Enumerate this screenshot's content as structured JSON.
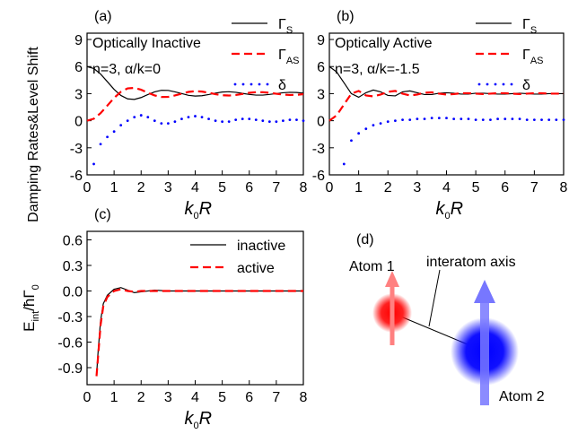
{
  "chart_data": [
    {
      "type": "line",
      "panel": "(a)",
      "annotations": [
        "Optically Inactive",
        "n=3, α/k=0"
      ],
      "ylabel": "Damping Rates&Level Shift",
      "xlabel": [
        "k",
        "0",
        "R"
      ],
      "xlim": [
        0,
        8
      ],
      "xticks": [
        0,
        1,
        2,
        3,
        4,
        5,
        6,
        7,
        8
      ],
      "ylim": [
        -6,
        9.7
      ],
      "yticks": [
        -6,
        -3,
        0,
        3,
        6,
        9
      ],
      "legend": "upper right",
      "x": [
        0,
        0.25,
        0.5,
        0.75,
        1,
        1.25,
        1.5,
        1.75,
        2,
        2.25,
        2.5,
        2.75,
        3,
        3.25,
        3.5,
        3.75,
        4,
        4.25,
        4.5,
        4.75,
        5,
        5.25,
        5.5,
        5.75,
        6,
        6.25,
        6.5,
        6.75,
        7,
        7.25,
        7.5,
        7.75,
        8
      ],
      "series": [
        {
          "name": "Γ",
          "sub": "S",
          "color": "#000000",
          "style": "solid",
          "values": [
            6,
            5.78,
            5.17,
            4.33,
            3.47,
            2.8,
            2.42,
            2.36,
            2.57,
            2.9,
            3.2,
            3.37,
            3.36,
            3.2,
            3.01,
            2.81,
            2.73,
            2.77,
            2.9,
            3.06,
            3.18,
            3.21,
            3.15,
            3.03,
            2.91,
            2.84,
            2.84,
            2.91,
            3.01,
            3.1,
            3.15,
            3.13,
            3.06
          ]
        },
        {
          "name": "Γ",
          "sub": "AS",
          "color": "#ff0000",
          "style": "dashed",
          "values": [
            0,
            0.22,
            0.83,
            1.67,
            2.53,
            3.2,
            3.58,
            3.64,
            3.43,
            3.1,
            2.8,
            2.63,
            2.64,
            2.8,
            2.99,
            3.19,
            3.27,
            3.23,
            3.1,
            2.94,
            2.82,
            2.79,
            2.85,
            2.97,
            3.09,
            3.16,
            3.16,
            3.09,
            2.99,
            2.9,
            2.85,
            2.87,
            2.94
          ]
        },
        {
          "name": "δ",
          "color": "#0000ff",
          "style": "dotted",
          "values": [
            null,
            -4.8,
            -2.6,
            -1.8,
            -1.2,
            -0.5,
            0,
            0.4,
            0.6,
            0.4,
            0,
            -0.3,
            -0.3,
            -0.1,
            0.2,
            0.4,
            0.5,
            0.4,
            0.2,
            0,
            -0.1,
            -0.1,
            0.1,
            0.2,
            0.2,
            0.1,
            0,
            -0.1,
            -0.1,
            0,
            0.1,
            0.1,
            0
          ]
        }
      ]
    },
    {
      "type": "line",
      "panel": "(b)",
      "annotations": [
        "Optically Active",
        "n=3, α/k=-1.5"
      ],
      "xlabel": [
        "k",
        "0",
        "R"
      ],
      "xlim": [
        0,
        8
      ],
      "xticks": [
        0,
        1,
        2,
        3,
        4,
        5,
        6,
        7,
        8
      ],
      "ylim": [
        -6,
        9.7
      ],
      "yticks": [
        -6,
        -3,
        0,
        3,
        6,
        9
      ],
      "legend": "upper right",
      "x": [
        0,
        0.25,
        0.5,
        0.75,
        1,
        1.25,
        1.5,
        1.75,
        2,
        2.25,
        2.5,
        2.75,
        3,
        3.25,
        3.5,
        3.75,
        4,
        4.25,
        4.5,
        4.75,
        5,
        5.25,
        5.5,
        5.75,
        6,
        6.25,
        6.5,
        6.75,
        7,
        7.25,
        7.5,
        7.75,
        8
      ],
      "series": [
        {
          "name": "Γ",
          "sub": "S",
          "color": "#000000",
          "style": "solid",
          "values": [
            6,
            5.4,
            4.2,
            3.0,
            2.6,
            3.1,
            3.4,
            3.2,
            2.8,
            2.75,
            3.2,
            3.3,
            3.1,
            2.9,
            2.9,
            3.05,
            3.1,
            3.05,
            2.95,
            2.95,
            3.05,
            3.05,
            3.0,
            2.95,
            2.95,
            3.0,
            3.05,
            3.0,
            2.95,
            2.95,
            3.0,
            3.0,
            3.0
          ]
        },
        {
          "name": "Γ",
          "sub": "AS",
          "color": "#ff0000",
          "style": "dashed",
          "values": [
            0,
            0.6,
            1.8,
            3.0,
            3.3,
            2.8,
            2.7,
            2.9,
            3.2,
            3.3,
            3.0,
            2.8,
            2.9,
            3.1,
            3.15,
            3.0,
            2.9,
            2.95,
            3.05,
            3.05,
            3.0,
            2.95,
            3.0,
            3.05,
            3.05,
            3.0,
            2.95,
            3.0,
            3.05,
            3.05,
            3.0,
            3.0,
            3.0
          ]
        },
        {
          "name": "δ",
          "color": "#0000ff",
          "style": "dotted",
          "values": [
            null,
            null,
            -4.8,
            -2.2,
            -1.4,
            -0.9,
            -0.5,
            -0.3,
            -0.1,
            0,
            0.1,
            0.1,
            0.2,
            0.2,
            0.3,
            0.3,
            0.3,
            0.2,
            0.2,
            0.2,
            0.1,
            0.1,
            0.1,
            0.2,
            0.2,
            0.2,
            0.2,
            0.1,
            0.1,
            0.1,
            0.1,
            0.1,
            0.1
          ]
        }
      ]
    },
    {
      "type": "line",
      "panel": "(c)",
      "annotations": [],
      "ylabel": [
        "E",
        "int",
        "/ħΓ",
        "0"
      ],
      "xlabel": [
        "k",
        "0",
        "R"
      ],
      "xlim": [
        0,
        8
      ],
      "xticks": [
        0,
        1,
        2,
        3,
        4,
        5,
        6,
        7,
        8
      ],
      "ylim": [
        -1.1,
        0.7
      ],
      "yticks": [
        0.6,
        0.3,
        {
          "value": 0,
          "label": "0.0"
        },
        -0.3,
        -0.6,
        -0.9
      ],
      "legend": "upper right",
      "x": [
        0.35,
        0.4,
        0.5,
        0.6,
        0.75,
        1,
        1.25,
        1.5,
        1.75,
        2,
        2.5,
        3,
        4,
        5,
        6,
        7,
        8
      ],
      "series": [
        {
          "name": "inactive",
          "color": "#000000",
          "style": "solid",
          "values": [
            -1.0,
            -0.75,
            -0.35,
            -0.15,
            -0.05,
            0.02,
            0.04,
            0.01,
            -0.02,
            -0.01,
            0.01,
            0,
            0,
            0,
            0,
            0,
            0
          ]
        },
        {
          "name": "active",
          "color": "#ff0000",
          "style": "dashed",
          "values": [
            -1.0,
            -0.8,
            -0.4,
            -0.18,
            -0.07,
            0,
            0.02,
            0,
            -0.01,
            0,
            0,
            0,
            0,
            0,
            0,
            0,
            0
          ]
        }
      ]
    }
  ],
  "diagram": {
    "panel": "(d)",
    "atom1": "Atom 1",
    "axis": "interatom axis",
    "atom2": "Atom 2"
  }
}
